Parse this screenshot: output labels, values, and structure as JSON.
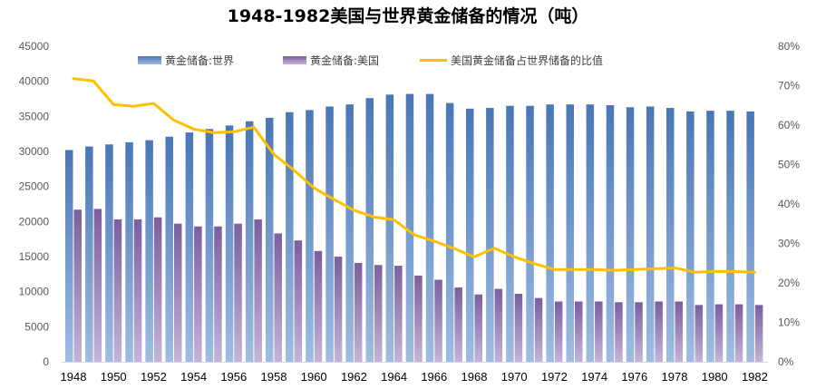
{
  "chart_data": {
    "type": "bar",
    "title": "1948-1982美国与世界黄金储备的情况（吨）",
    "x": [
      1948,
      1949,
      1950,
      1951,
      1952,
      1953,
      1954,
      1955,
      1956,
      1957,
      1958,
      1959,
      1960,
      1961,
      1962,
      1963,
      1964,
      1965,
      1966,
      1967,
      1968,
      1969,
      1970,
      1971,
      1972,
      1973,
      1974,
      1975,
      1976,
      1977,
      1978,
      1979,
      1980,
      1981,
      1982
    ],
    "x_tick_labels": [
      "1948",
      "1950",
      "1952",
      "1954",
      "1956",
      "1958",
      "1960",
      "1962",
      "1964",
      "1966",
      "1968",
      "1970",
      "1972",
      "1974",
      "1976",
      "1978",
      "1980",
      "1982"
    ],
    "series": [
      {
        "name": "黄金储备:世界",
        "type": "bar",
        "axis": "left",
        "color": "#4f81bd",
        "values": [
          30200,
          30700,
          31000,
          31300,
          31600,
          32100,
          32700,
          33200,
          33700,
          34300,
          34800,
          35600,
          35900,
          36400,
          36700,
          37600,
          38100,
          38200,
          38200,
          36900,
          36100,
          36200,
          36500,
          36500,
          36700,
          36700,
          36700,
          36600,
          36300,
          36400,
          36200,
          35700,
          35800,
          35800,
          35700
        ]
      },
      {
        "name": "黄金储备:美国",
        "type": "bar",
        "axis": "left",
        "color": "#8064a2",
        "values": [
          21700,
          21800,
          20300,
          20300,
          20600,
          19700,
          19300,
          19300,
          19700,
          20300,
          18300,
          17300,
          15800,
          15000,
          14100,
          13800,
          13700,
          12300,
          11700,
          10600,
          9600,
          10400,
          9700,
          9100,
          8600,
          8600,
          8600,
          8500,
          8500,
          8600,
          8600,
          8100,
          8200,
          8200,
          8100
        ]
      },
      {
        "name": "美国黄金储备占世界储备的比值",
        "type": "line",
        "axis": "right",
        "color": "#ffc000",
        "values": [
          0.718,
          0.712,
          0.652,
          0.648,
          0.655,
          0.613,
          0.59,
          0.581,
          0.583,
          0.595,
          0.526,
          0.486,
          0.441,
          0.412,
          0.384,
          0.367,
          0.36,
          0.322,
          0.306,
          0.287,
          0.266,
          0.288,
          0.266,
          0.249,
          0.234,
          0.234,
          0.234,
          0.232,
          0.234,
          0.236,
          0.238,
          0.227,
          0.229,
          0.229,
          0.227
        ]
      }
    ],
    "y_left": {
      "min": 0,
      "max": 45000,
      "step": 5000,
      "tick_labels": [
        "0",
        "5000",
        "10000",
        "15000",
        "20000",
        "25000",
        "30000",
        "35000",
        "40000",
        "45000"
      ]
    },
    "y_right": {
      "min": 0,
      "max": 0.8,
      "step": 0.1,
      "tick_labels": [
        "0%",
        "10%",
        "20%",
        "30%",
        "40%",
        "50%",
        "60%",
        "70%",
        "80%"
      ]
    },
    "legend": {
      "position": "top",
      "items": [
        "黄金储备:世界",
        "黄金储备:美国",
        "美国黄金储备占世界储备的比值"
      ]
    },
    "grid": false
  }
}
